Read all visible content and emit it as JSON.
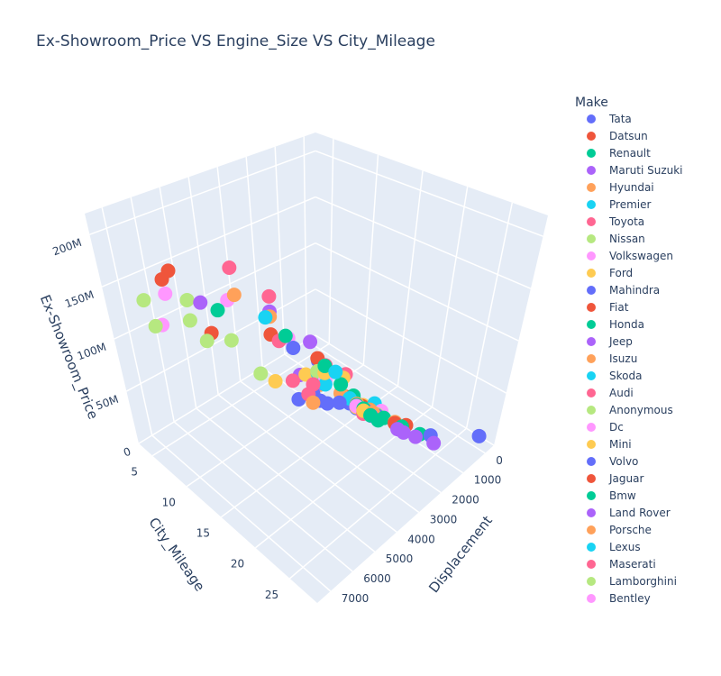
{
  "chart_data": {
    "type": "scatter3d",
    "title": "Ex-Showroom_Price VS Engine_Size VS City_Mileage",
    "legend_title": "Make",
    "xaxis_title": "Displacement",
    "yaxis_title": "City_Mileage",
    "zaxis_title": "Ex-Showroom_Price",
    "xlim": [
      -400,
      7600
    ],
    "ylim": [
      3,
      29
    ],
    "zlim": [
      0,
      220000000
    ],
    "xticks": [
      0,
      1000,
      2000,
      3000,
      4000,
      5000,
      6000,
      7000
    ],
    "yticks": [
      5,
      10,
      15,
      20,
      25
    ],
    "zticks": [
      {
        "value": 0,
        "label": "0"
      },
      {
        "value": 50000000,
        "label": "50M"
      },
      {
        "value": 100000000,
        "label": "100M"
      },
      {
        "value": 150000000,
        "label": "150M"
      },
      {
        "value": 200000000,
        "label": "200M"
      }
    ],
    "grid": true,
    "series": [
      {
        "name": "Tata",
        "color": "#636efa",
        "x": [
          1199,
          1497,
          2179,
          1956,
          624,
          100
        ],
        "y": [
          17,
          15,
          13,
          14,
          23,
          28
        ],
        "z": [
          6000000,
          9000000,
          15000000,
          17000000,
          3000000,
          14000000
        ]
      },
      {
        "name": "Datsun",
        "color": "#EF553B",
        "x": [
          799,
          999,
          1198
        ],
        "y": [
          20,
          19,
          17
        ],
        "z": [
          3000000,
          4000000,
          6000000
        ]
      },
      {
        "name": "Renault",
        "color": "#00cc96",
        "x": [
          799,
          999,
          1461,
          1498,
          1330
        ],
        "y": [
          22,
          20,
          18,
          15,
          14
        ],
        "z": [
          3000000,
          5000000,
          10000000,
          12000000,
          14000000
        ]
      },
      {
        "name": "Maruti Suzuki",
        "color": "#ab63fa",
        "x": [
          796,
          998,
          1197,
          1248,
          1462,
          1373
        ],
        "y": [
          24,
          22,
          20,
          21,
          17,
          16
        ],
        "z": [
          3000000,
          4000000,
          6000000,
          8000000,
          10000000,
          9000000
        ]
      },
      {
        "name": "Hyundai",
        "color": "#FFA15A",
        "x": [
          1197,
          1396,
          1591,
          1493,
          998
        ],
        "y": [
          16,
          17,
          13,
          15,
          19
        ],
        "z": [
          7000000,
          12000000,
          16000000,
          13000000,
          5000000
        ]
      },
      {
        "name": "Premier",
        "color": "#19d3f3",
        "x": [
          1248
        ],
        "y": [
          14
        ],
        "z": [
          7000000
        ]
      },
      {
        "name": "Toyota",
        "color": "#FF6692",
        "x": [
          1496,
          2393,
          2755,
          2494
        ],
        "y": [
          16,
          11,
          10,
          12
        ],
        "z": [
          8000000,
          18000000,
          32000000,
          34000000
        ]
      },
      {
        "name": "Nissan",
        "color": "#B6E880",
        "x": [
          1198,
          1498,
          1461
        ],
        "y": [
          17,
          13,
          15
        ],
        "z": [
          7000000,
          11000000,
          12000000
        ]
      },
      {
        "name": "Volkswagen",
        "color": "#FF97FF",
        "x": [
          999,
          1498,
          1968
        ],
        "y": [
          17,
          15,
          12
        ],
        "z": [
          7000000,
          11000000,
          30000000
        ]
      },
      {
        "name": "Ford",
        "color": "#FECB52",
        "x": [
          1194,
          1497,
          1499,
          2198,
          3198
        ],
        "y": [
          15,
          15,
          16,
          10,
          9
        ],
        "z": [
          7000000,
          10000000,
          11000000,
          30000000,
          33000000
        ]
      },
      {
        "name": "Mahindra",
        "color": "#636efa",
        "x": [
          2179,
          2184,
          2523,
          1493
        ],
        "y": [
          12,
          11,
          10,
          14
        ],
        "z": [
          13000000,
          15000000,
          10000000,
          9000000
        ]
      },
      {
        "name": "Fiat",
        "color": "#EF553B",
        "x": [
          1248,
          1368
        ],
        "y": [
          15,
          13
        ],
        "z": [
          7000000,
          9000000
        ]
      },
      {
        "name": "Honda",
        "color": "#00cc96",
        "x": [
          1199,
          1497,
          1597,
          1498
        ],
        "y": [
          18,
          17,
          13,
          16
        ],
        "z": [
          8000000,
          11000000,
          25000000,
          13000000
        ]
      },
      {
        "name": "Jeep",
        "color": "#ab63fa",
        "x": [
          1368,
          1956,
          2143
        ],
        "y": [
          10,
          11,
          9
        ],
        "z": [
          18000000,
          22000000,
          24000000
        ]
      },
      {
        "name": "Isuzu",
        "color": "#FFA15A",
        "x": [
          2499,
          1898
        ],
        "y": [
          12,
          11
        ],
        "z": [
          16000000,
          20000000
        ]
      },
      {
        "name": "Skoda",
        "color": "#19d3f3",
        "x": [
          999,
          1498,
          1968,
          1984
        ],
        "y": [
          16,
          14,
          12,
          11
        ],
        "z": [
          10000000,
          14000000,
          26000000,
          33000000
        ]
      },
      {
        "name": "Audi",
        "color": "#FF6692",
        "x": [
          1395,
          1968,
          2967
        ],
        "y": [
          13,
          12,
          9
        ],
        "z": [
          32000000,
          45000000,
          70000000
        ]
      },
      {
        "name": "Anonymous",
        "color": "#B6E880",
        "x": [
          3500,
          2000
        ],
        "y": [
          8,
          11
        ],
        "z": [
          40000000,
          35000000
        ]
      },
      {
        "name": "Dc",
        "color": "#FF97FF",
        "x": [
          1998
        ],
        "y": [
          7
        ],
        "z": [
          50000000
        ]
      },
      {
        "name": "Mini",
        "color": "#FECB52",
        "x": [
          1499,
          1998
        ],
        "y": [
          13,
          12
        ],
        "z": [
          30000000,
          38000000
        ]
      },
      {
        "name": "Volvo",
        "color": "#636efa",
        "x": [
          1969,
          2400
        ],
        "y": [
          11,
          9
        ],
        "z": [
          45000000,
          55000000
        ]
      },
      {
        "name": "Jaguar",
        "color": "#EF553B",
        "x": [
          1997,
          2993,
          6500,
          6500,
          5000
        ],
        "y": [
          11,
          8,
          8,
          7,
          7
        ],
        "z": [
          48000000,
          72000000,
          178000000,
          165000000,
          95000000
        ]
      },
      {
        "name": "Bmw",
        "color": "#00cc96",
        "x": [
          1998,
          2993,
          4395
        ],
        "y": [
          12,
          10,
          6
        ],
        "z": [
          45000000,
          80000000,
          105000000
        ]
      },
      {
        "name": "Land Rover",
        "color": "#ab63fa",
        "x": [
          1997,
          2993,
          4999
        ],
        "y": [
          10,
          8,
          6
        ],
        "z": [
          60000000,
          95000000,
          120000000
        ]
      },
      {
        "name": "Porsche",
        "color": "#FFA15A",
        "x": [
          2995,
          3996
        ],
        "y": [
          8,
          7
        ],
        "z": [
          90000000,
          120000000
        ]
      },
      {
        "name": "Lexus",
        "color": "#19d3f3",
        "x": [
          2487,
          3456
        ],
        "y": [
          15,
          9
        ],
        "z": [
          60000000,
          100000000
        ]
      },
      {
        "name": "Maserati",
        "color": "#FF6692",
        "x": [
          2979,
          3799
        ],
        "y": [
          8,
          6
        ],
        "z": [
          110000000,
          140000000
        ]
      },
      {
        "name": "Lamborghini",
        "color": "#B6E880",
        "x": [
          5204,
          6498,
          5204,
          6498,
          5204,
          3996
        ],
        "y": [
          5,
          4,
          5,
          5,
          7,
          6
        ],
        "z": [
          120000000,
          130000000,
          100000000,
          110000000,
          90000000,
          70000000
        ]
      },
      {
        "name": "Bentley",
        "color": "#FF97FF",
        "x": [
          3993,
          5950,
          5998
        ],
        "y": [
          6,
          5,
          4
        ],
        "z": [
          110000000,
          135000000,
          100000000
        ]
      }
    ]
  }
}
